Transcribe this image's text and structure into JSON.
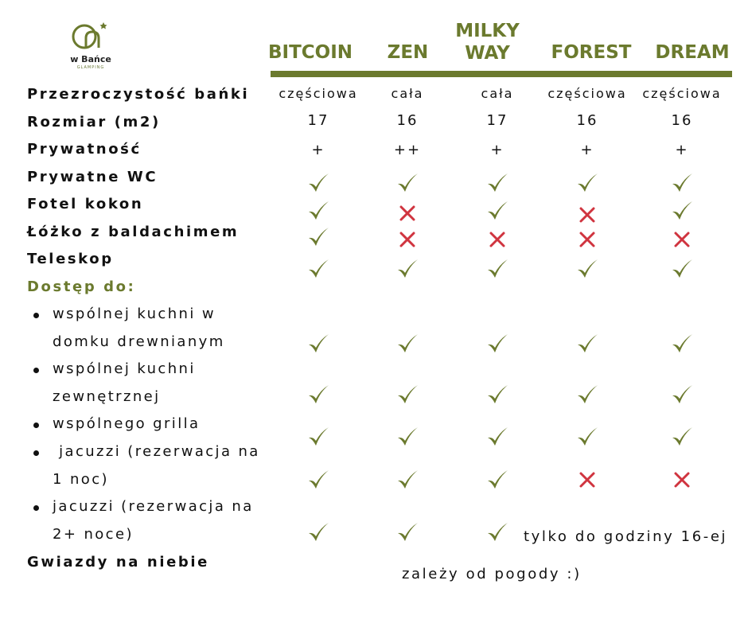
{
  "brand": {
    "name": "w Bańce",
    "tagline": "GLAMPING"
  },
  "columns": [
    "BITCOIN",
    "ZEN",
    "MILKY WAY",
    "FOREST",
    "DREAM"
  ],
  "rows": {
    "transparency": {
      "label": "Przezroczystość bańki",
      "values": [
        "częściowa",
        "cała",
        "cała",
        "częściowa",
        "częściowa"
      ]
    },
    "size": {
      "label": "Rozmiar (m2)",
      "values": [
        "17",
        "16",
        "17",
        "16",
        "16"
      ]
    },
    "privacy": {
      "label": "Prywatność",
      "values": [
        "+",
        "++",
        "+",
        "+",
        "+"
      ]
    },
    "wc": {
      "label": "Prywatne WC",
      "values": [
        "check",
        "check",
        "check",
        "check",
        "check"
      ]
    },
    "cocoon": {
      "label": "Fotel kokon",
      "values": [
        "check",
        "cross",
        "check",
        "cross",
        "check"
      ]
    },
    "canopy_bed": {
      "label": "Łóżko z baldachimem",
      "values": [
        "check",
        "cross",
        "cross",
        "cross",
        "cross"
      ]
    },
    "telescope": {
      "label": "Teleskop",
      "values": [
        "check",
        "check",
        "check",
        "check",
        "check"
      ]
    }
  },
  "access": {
    "heading": "Dostęp do:",
    "items": [
      {
        "lines": [
          "wspólnej kuchni w",
          "domku drewnianym"
        ],
        "values": [
          "check",
          "check",
          "check",
          "check",
          "check"
        ]
      },
      {
        "lines": [
          "wspólnej kuchni",
          "zewnętrznej"
        ],
        "values": [
          "check",
          "check",
          "check",
          "check",
          "check"
        ]
      },
      {
        "lines": [
          "wspólnego grilla"
        ],
        "values": [
          "check",
          "check",
          "check",
          "check",
          "check"
        ]
      },
      {
        "lines": [
          " jacuzzi (rezerwacja na",
          "1 noc)"
        ],
        "values": [
          "check",
          "check",
          "check",
          "cross",
          "cross"
        ]
      },
      {
        "lines": [
          "jacuzzi (rezerwacja na",
          "2+ noce)"
        ],
        "values": [
          "check",
          "check",
          "check"
        ],
        "note": "tylko do godziny 16-ej"
      }
    ]
  },
  "stars": {
    "label": "Gwiazdy na niebie",
    "note": "zależy od pogody :)"
  },
  "colors": {
    "olive": "#6b7a2e",
    "red": "#d0343f",
    "text": "#111111"
  },
  "icons": {
    "check": "check-icon",
    "cross": "cross-icon"
  }
}
